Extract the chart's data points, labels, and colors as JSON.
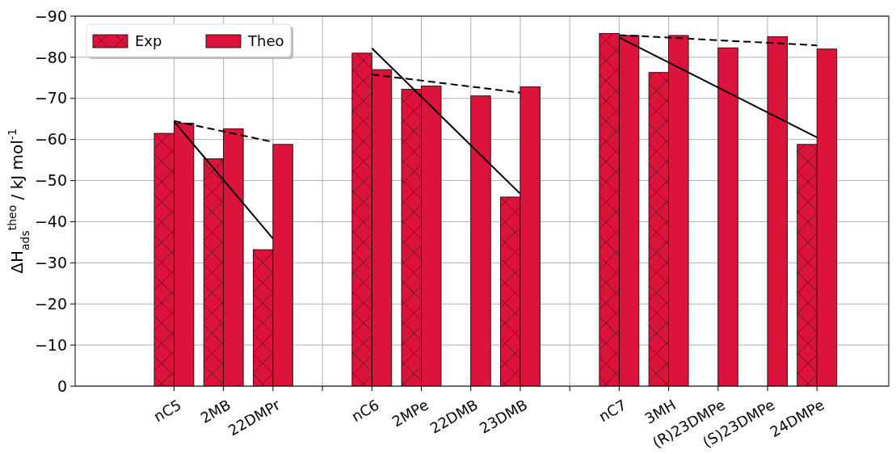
{
  "chart_data": {
    "type": "bar",
    "ylabel": "ΔH$_{ads}$$^{theo}$ / kJ mol$^{-1}$",
    "categories": [
      null,
      "nC5",
      "2MB",
      "22DMPr",
      null,
      "nC6",
      "2MPe",
      "22DMB",
      "23DMB",
      null,
      "nC7",
      "3MH",
      "(R)23DMPe",
      "(S)23DMPe",
      "24DMPe",
      null
    ],
    "ylim": [
      0,
      -90
    ],
    "yticks": [
      {
        "value": 0,
        "label": "0"
      },
      {
        "value": -10,
        "label": "−10"
      },
      {
        "value": -20,
        "label": "−20"
      },
      {
        "value": -30,
        "label": "−30"
      },
      {
        "value": -40,
        "label": "−40"
      },
      {
        "value": -50,
        "label": "−50"
      },
      {
        "value": -60,
        "label": "−60"
      },
      {
        "value": -70,
        "label": "−70"
      },
      {
        "value": -80,
        "label": "−80"
      },
      {
        "value": -90,
        "label": "−90"
      }
    ],
    "grid": true,
    "legend": "top left",
    "series": [
      {
        "name": "Exp",
        "color": "#dc143c",
        "values": [
          null,
          -61.5,
          -55.3,
          -33.2,
          null,
          -81,
          -72.2,
          null,
          -46,
          null,
          -85.8,
          -76.3,
          null,
          null,
          -58.8,
          null
        ]
      },
      {
        "name": "Theo",
        "color": "#dc143c",
        "values": [
          null,
          -64,
          -62.6,
          -58.8,
          null,
          -77,
          -73,
          -70.6,
          -72.8,
          null,
          -85.3,
          -85.3,
          -82.3,
          -85,
          -82,
          null
        ]
      },
      {
        "type": "line",
        "color": "#000000",
        "line_style": "solid",
        "x": [
          "nC5",
          "22DMPr"
        ],
        "values": [
          -64.4,
          -35.9
        ]
      },
      {
        "type": "line",
        "color": "#000000",
        "line_style": "dashed",
        "x": [
          "nC5",
          "22DMPr"
        ],
        "values": [
          -64.5,
          -59.4
        ]
      },
      {
        "type": "line",
        "color": "#000000",
        "line_style": "solid",
        "x": [
          "nC6",
          "23DMB"
        ],
        "values": [
          -82.2,
          -46.8
        ]
      },
      {
        "type": "line",
        "color": "#000000",
        "line_style": "dashed",
        "x": [
          "nC6",
          "23DMB"
        ],
        "values": [
          -75.8,
          -71.4
        ]
      },
      {
        "type": "line",
        "color": "#000000",
        "line_style": "solid",
        "x": [
          "nC7",
          "24DMPe"
        ],
        "values": [
          -84.8,
          -60.5
        ]
      },
      {
        "type": "line",
        "color": "#000000",
        "line_style": "dashed",
        "x": [
          "nC7",
          "24DMPe"
        ],
        "values": [
          -85.4,
          -82.9
        ]
      }
    ]
  }
}
